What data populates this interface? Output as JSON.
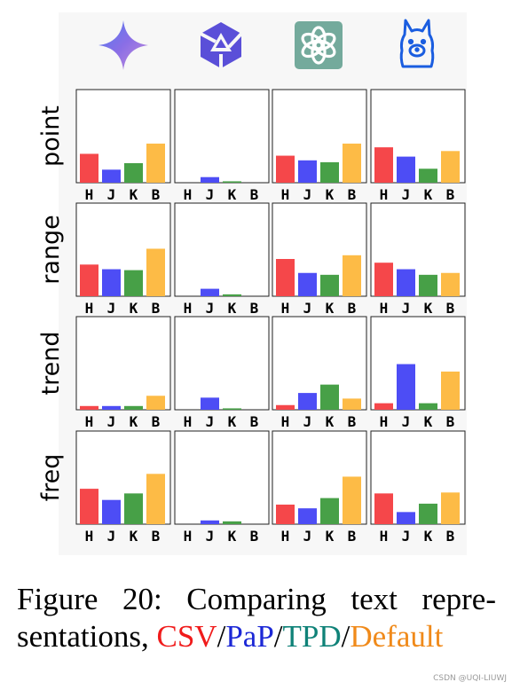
{
  "chart_data": {
    "type": "bar",
    "rows": [
      "point",
      "range",
      "trend",
      "freq"
    ],
    "categories": [
      "H",
      "J",
      "K",
      "B"
    ],
    "colors": [
      "#f5474a",
      "#4d4df5",
      "#47a047",
      "#fdbb46"
    ],
    "ylim": [
      0,
      1
    ],
    "columns": [
      {
        "icon": "gemini-icon"
      },
      {
        "icon": "qwen-icon"
      },
      {
        "icon": "openai-icon"
      },
      {
        "icon": "llama-icon"
      }
    ],
    "panels": [
      [
        {
          "values": [
            0.31,
            0.14,
            0.21,
            0.42
          ]
        },
        {
          "values": [
            0.0,
            0.06,
            0.015,
            0.0
          ]
        },
        {
          "values": [
            0.29,
            0.24,
            0.22,
            0.42
          ]
        },
        {
          "values": [
            0.38,
            0.28,
            0.15,
            0.34
          ]
        }
      ],
      [
        {
          "values": [
            0.34,
            0.29,
            0.28,
            0.51
          ]
        },
        {
          "values": [
            0.0,
            0.08,
            0.02,
            0.0
          ]
        },
        {
          "values": [
            0.4,
            0.25,
            0.23,
            0.44
          ]
        },
        {
          "values": [
            0.36,
            0.29,
            0.23,
            0.25
          ]
        }
      ],
      [
        {
          "values": [
            0.04,
            0.04,
            0.04,
            0.15
          ]
        },
        {
          "values": [
            0.0,
            0.13,
            0.015,
            0.0
          ]
        },
        {
          "values": [
            0.05,
            0.18,
            0.27,
            0.12
          ]
        },
        {
          "values": [
            0.07,
            0.49,
            0.07,
            0.41
          ]
        }
      ],
      [
        {
          "values": [
            0.38,
            0.26,
            0.33,
            0.54
          ]
        },
        {
          "values": [
            0.0,
            0.04,
            0.03,
            0.0
          ]
        },
        {
          "values": [
            0.21,
            0.17,
            0.28,
            0.51
          ]
        },
        {
          "values": [
            0.33,
            0.13,
            0.22,
            0.34
          ]
        }
      ]
    ]
  },
  "caption": {
    "line1": "Figure 20: Comparing text repre-",
    "line2_prefix": "sentations, ",
    "csv": "CSV",
    "sep1": "/",
    "pap": "PaP",
    "sep2": "/",
    "tpd": "TPD",
    "sep3": "/",
    "default": "Default"
  },
  "watermark": "CSDN @UQI-LIUWJ"
}
